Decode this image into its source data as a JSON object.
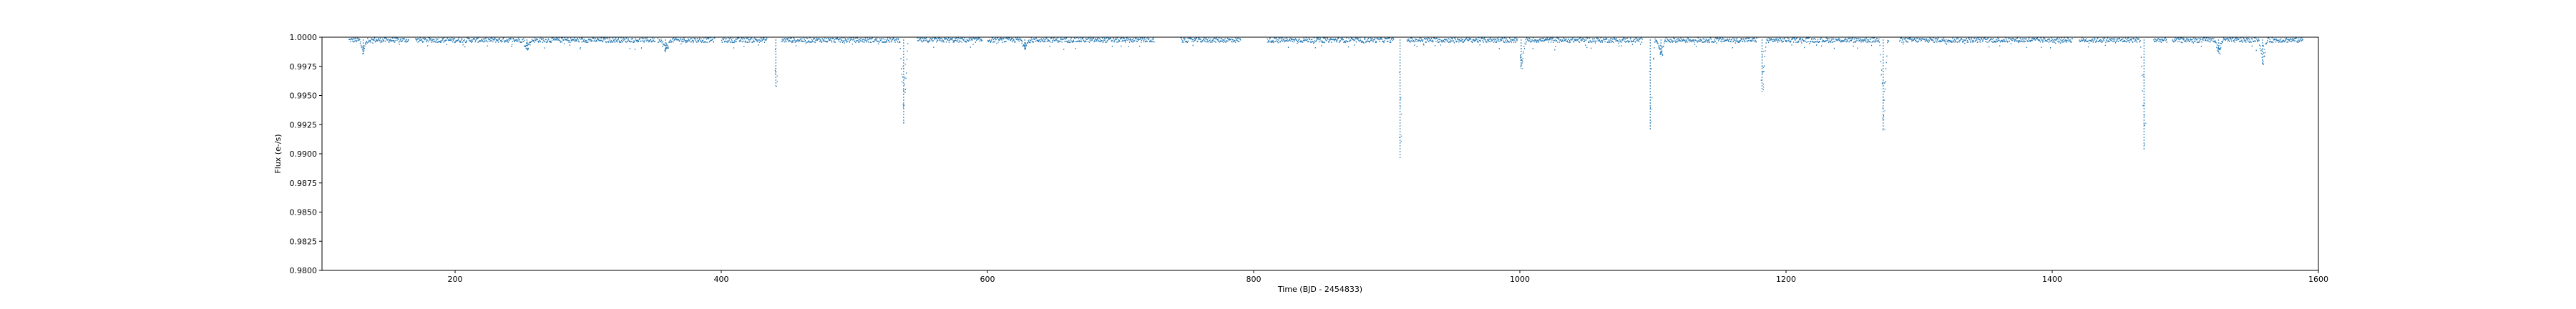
{
  "chart_data": {
    "type": "scatter",
    "xlabel": "Time (BJD - 2454833)",
    "ylabel": "Flux (e-/s)",
    "xlim": [
      100,
      1600
    ],
    "ylim": [
      0.98,
      1.0
    ],
    "x_ticks": [
      200,
      400,
      600,
      800,
      1000,
      1200,
      1400,
      1600
    ],
    "x_tick_labels": [
      "200",
      "400",
      "600",
      "800",
      "1000",
      "1200",
      "1400",
      "1600"
    ],
    "y_ticks": [
      0.98,
      0.9825,
      0.985,
      0.9875,
      0.99,
      0.9925,
      0.995,
      0.9975,
      1.0
    ],
    "y_tick_labels": [
      "0.9800",
      "0.9825",
      "0.9850",
      "0.9875",
      "0.9900",
      "0.9925",
      "0.9950",
      "0.9975",
      "1.0000"
    ],
    "grid": false,
    "marker_color": "#1f77b4",
    "baseline_flux": 0.9998,
    "segments": [
      [
        120,
        165
      ],
      [
        170,
        350
      ],
      [
        352,
        395
      ],
      [
        400,
        434
      ],
      [
        445,
        540
      ],
      [
        547,
        596
      ],
      [
        600,
        725
      ],
      [
        745,
        790
      ],
      [
        810,
        905
      ],
      [
        915,
        998
      ],
      [
        1000,
        1092
      ],
      [
        1100,
        1178
      ],
      [
        1182,
        1277
      ],
      [
        1285,
        1415
      ],
      [
        1420,
        1468
      ],
      [
        1476,
        1486
      ],
      [
        1490,
        1588
      ]
    ],
    "gaps": [
      [
        725,
        745
      ],
      [
        790,
        810
      ],
      [
        1277,
        1285
      ],
      [
        1468,
        1476
      ]
    ],
    "dips": [
      {
        "x": 131,
        "depth": 0.0012
      },
      {
        "x": 254,
        "depth": 0.0009
      },
      {
        "x": 358,
        "depth": 0.0011
      },
      {
        "x": 441,
        "depth": 0.004
      },
      {
        "x": 537,
        "depth": 0.0072
      },
      {
        "x": 628,
        "depth": 0.0008
      },
      {
        "x": 910,
        "depth": 0.0102
      },
      {
        "x": 1001,
        "depth": 0.0025
      },
      {
        "x": 1098,
        "depth": 0.0078
      },
      {
        "x": 1106,
        "depth": 0.0015
      },
      {
        "x": 1182,
        "depth": 0.0045
      },
      {
        "x": 1273,
        "depth": 0.0078
      },
      {
        "x": 1469,
        "depth": 0.0095
      },
      {
        "x": 1525,
        "depth": 0.0012
      },
      {
        "x": 1558,
        "depth": 0.0022
      }
    ]
  }
}
